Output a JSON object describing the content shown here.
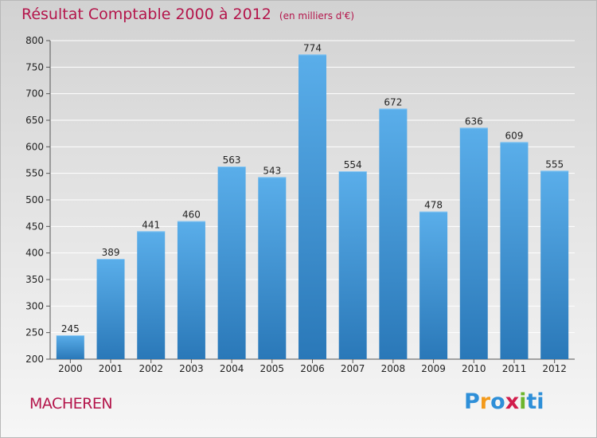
{
  "header": {
    "title": "Résultat Comptable 2000 à 2012",
    "unit": "(en milliers d'€)"
  },
  "footer": {
    "city": "MACHEREN",
    "logo_letters": [
      "P",
      "r",
      "o",
      "x",
      "i",
      "ti"
    ],
    "logo_text": "Proxiti"
  },
  "chart_data": {
    "type": "bar",
    "title": "Résultat Comptable 2000 à 2012",
    "subtitle": "(en milliers d'€)",
    "xlabel": "",
    "ylabel": "",
    "categories": [
      "2000",
      "2001",
      "2002",
      "2003",
      "2004",
      "2005",
      "2006",
      "2007",
      "2008",
      "2009",
      "2010",
      "2011",
      "2012"
    ],
    "values": [
      245,
      389,
      441,
      460,
      563,
      543,
      774,
      554,
      672,
      478,
      636,
      609,
      555
    ],
    "ylim": [
      200,
      800
    ],
    "yticks": [
      200,
      250,
      300,
      350,
      400,
      450,
      500,
      550,
      600,
      650,
      700,
      750,
      800
    ],
    "grid": true,
    "bar_color_top": "#5aaeea",
    "bar_color_bottom": "#2a78b8"
  },
  "colors": {
    "title": "#b4154b",
    "axis": "#555555",
    "grid": "#ffffff"
  }
}
